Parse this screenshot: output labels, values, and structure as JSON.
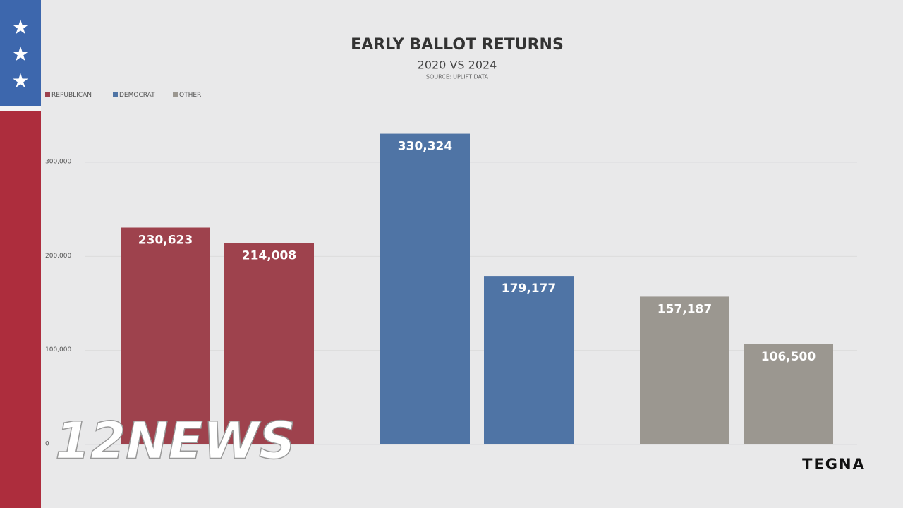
{
  "chart_data": {
    "type": "bar",
    "title": "EARLY BALLOT RETURNS",
    "subtitle": "2020 VS 2024",
    "source": "SOURCE: UPLIFT DATA",
    "categories": [
      null,
      null
    ],
    "series": [
      {
        "name": "REPUBLICAN",
        "color": "#9e424d",
        "values": [
          230623,
          214008
        ],
        "value_labels": [
          "230,623",
          "214,008"
        ]
      },
      {
        "name": "DEMOCRAT",
        "color": "#4f74a5",
        "values": [
          330324,
          179177
        ],
        "value_labels": [
          "330,324",
          "179,177"
        ]
      },
      {
        "name": "OTHER",
        "color": "#9b9790",
        "values": [
          157187,
          106500
        ],
        "value_labels": [
          "157,187",
          "106,500"
        ]
      }
    ],
    "ylim": [
      0,
      360000
    ],
    "yticks": [
      0,
      {
        "value": 100000,
        "label": "100,000"
      },
      {
        "value": 200000,
        "label": "200,000"
      },
      {
        "value": 300000,
        "label": "300,000"
      }
    ],
    "grid": true,
    "legend": "top-left"
  },
  "logos": {
    "station": "12NEWS",
    "owner": "TEGNA"
  }
}
